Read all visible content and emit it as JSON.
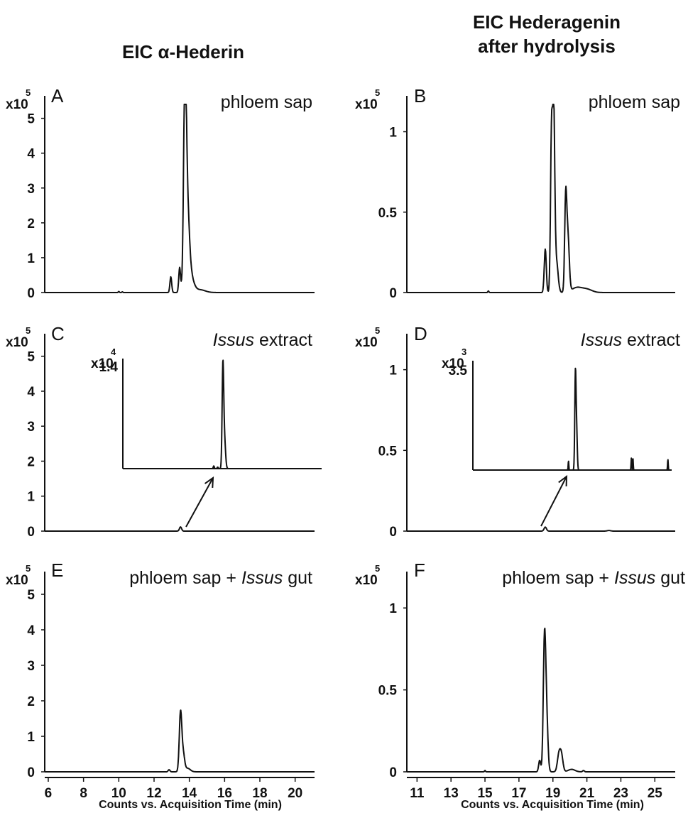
{
  "figure": {
    "column_titles": [
      {
        "lines": [
          "EIC α-Hederin"
        ]
      },
      {
        "lines": [
          "EIC Hederagenin",
          "after hydrolysis"
        ]
      }
    ],
    "x_axis_title": "Counts vs. Acquisition Time (min)"
  },
  "chart_data": [
    {
      "id": "A",
      "type": "line",
      "panel_letter": "A",
      "label_parts": [
        {
          "text": "phloem sap",
          "italic": false
        }
      ],
      "scale": {
        "base": "x10",
        "exp": "5"
      },
      "xlim": [
        5.8,
        21.1
      ],
      "ylim": [
        0,
        5.4
      ],
      "y_ticks": [
        0,
        1,
        2,
        3,
        4,
        5
      ],
      "y_tick_labels": [
        "0",
        "1",
        "2",
        "3",
        "4",
        "5"
      ],
      "x_ticks": [],
      "x_tick_labels": [],
      "peaks": [
        {
          "t": 10.0,
          "h": 0.03,
          "w": 0.03
        },
        {
          "t": 10.2,
          "h": 0.02,
          "w": 0.03
        },
        {
          "t": 12.95,
          "h": 0.45,
          "w": 0.05
        },
        {
          "t": 13.45,
          "h": 0.7,
          "w": 0.05
        },
        {
          "t": 13.75,
          "h": 5.0,
          "w": 0.07
        },
        {
          "t": 13.85,
          "h": 2.5,
          "w": 0.12
        },
        {
          "t": 14.0,
          "h": 0.6,
          "w": 0.2
        },
        {
          "t": 14.6,
          "h": 0.08,
          "w": 0.3
        }
      ]
    },
    {
      "id": "B",
      "type": "line",
      "panel_letter": "B",
      "label_parts": [
        {
          "text": "phloem sap",
          "italic": false
        }
      ],
      "scale": {
        "base": "x10",
        "exp": "5"
      },
      "xlim": [
        10.4,
        26.2
      ],
      "ylim": [
        0,
        1.17
      ],
      "y_ticks": [
        0,
        0.5,
        1
      ],
      "y_tick_labels": [
        "0",
        "0.5",
        "1"
      ],
      "x_ticks": [],
      "x_tick_labels": [],
      "peaks": [
        {
          "t": 15.2,
          "h": 0.01,
          "w": 0.03
        },
        {
          "t": 18.55,
          "h": 0.27,
          "w": 0.06
        },
        {
          "t": 18.92,
          "h": 1.0,
          "w": 0.06
        },
        {
          "t": 19.05,
          "h": 1.05,
          "w": 0.06
        },
        {
          "t": 19.2,
          "h": 0.2,
          "w": 0.1
        },
        {
          "t": 19.75,
          "h": 0.55,
          "w": 0.06
        },
        {
          "t": 19.88,
          "h": 0.35,
          "w": 0.08
        },
        {
          "t": 20.4,
          "h": 0.03,
          "w": 0.3
        },
        {
          "t": 21.0,
          "h": 0.02,
          "w": 0.3
        }
      ]
    },
    {
      "id": "C",
      "type": "line",
      "panel_letter": "C",
      "label_parts": [
        {
          "text": "Issus",
          "italic": true
        },
        {
          "text": " extract",
          "italic": false
        }
      ],
      "scale": {
        "base": "x10",
        "exp": "5"
      },
      "xlim": [
        5.8,
        21.1
      ],
      "ylim": [
        0,
        5.4
      ],
      "y_ticks": [
        0,
        1,
        2,
        3,
        4,
        5
      ],
      "y_tick_labels": [
        "0",
        "1",
        "2",
        "3",
        "4",
        "5"
      ],
      "x_ticks": [],
      "x_tick_labels": [],
      "peaks": [
        {
          "t": 13.5,
          "h": 0.12,
          "w": 0.06
        }
      ],
      "inset": {
        "scale": {
          "base": "x10",
          "exp": "4"
        },
        "y_top_label": "1.4",
        "xlim": [
          5.8,
          21.1
        ],
        "ylim": [
          0,
          1.45
        ],
        "peaks": [
          {
            "t": 12.8,
            "h": 0.035,
            "w": 0.04
          },
          {
            "t": 13.1,
            "h": 0.02,
            "w": 0.04
          },
          {
            "t": 13.5,
            "h": 1.3,
            "w": 0.06
          },
          {
            "t": 13.62,
            "h": 0.4,
            "w": 0.08
          }
        ]
      }
    },
    {
      "id": "D",
      "type": "line",
      "panel_letter": "D",
      "label_parts": [
        {
          "text": "Issus",
          "italic": true
        },
        {
          "text": " extract",
          "italic": false
        }
      ],
      "scale": {
        "base": "x10",
        "exp": "5"
      },
      "xlim": [
        10.4,
        26.2
      ],
      "ylim": [
        0,
        1.17
      ],
      "y_ticks": [
        0,
        0.5,
        1
      ],
      "y_tick_labels": [
        "0",
        "0.5",
        "1"
      ],
      "x_ticks": [],
      "x_tick_labels": [],
      "peaks": [
        {
          "t": 18.55,
          "h": 0.025,
          "w": 0.07
        },
        {
          "t": 22.3,
          "h": 0.004,
          "w": 0.1
        }
      ],
      "inset": {
        "scale": {
          "base": "x10",
          "exp": "3"
        },
        "y_top_label": "3.5",
        "xlim": [
          10.4,
          26.2
        ],
        "ylim": [
          0,
          3.6
        ],
        "peaks": [
          {
            "t": 18.0,
            "h": 0.3,
            "w": 0.025
          },
          {
            "t": 18.55,
            "h": 3.2,
            "w": 0.05
          },
          {
            "t": 18.65,
            "h": 1.2,
            "w": 0.05
          },
          {
            "t": 23.0,
            "h": 0.4,
            "w": 0.025
          },
          {
            "t": 23.12,
            "h": 0.4,
            "w": 0.025
          },
          {
            "t": 25.9,
            "h": 0.35,
            "w": 0.025
          }
        ]
      }
    },
    {
      "id": "E",
      "type": "line",
      "panel_letter": "E",
      "label_parts": [
        {
          "text": "phloem sap + ",
          "italic": false
        },
        {
          "text": "Issus",
          "italic": true
        },
        {
          "text": " gut",
          "italic": false
        }
      ],
      "scale": {
        "base": "x10",
        "exp": "5"
      },
      "xlim": [
        5.8,
        21.1
      ],
      "ylim": [
        0,
        5.4
      ],
      "y_ticks": [
        0,
        1,
        2,
        3,
        4,
        5
      ],
      "y_tick_labels": [
        "0",
        "1",
        "2",
        "3",
        "4",
        "5"
      ],
      "x_ticks": [
        6,
        8,
        10,
        12,
        14,
        16,
        18,
        20
      ],
      "x_tick_labels": [
        "6",
        "8",
        "10",
        "12",
        "14",
        "16",
        "18",
        "20"
      ],
      "peaks": [
        {
          "t": 12.85,
          "h": 0.06,
          "w": 0.05
        },
        {
          "t": 13.5,
          "h": 1.65,
          "w": 0.07
        },
        {
          "t": 13.65,
          "h": 0.5,
          "w": 0.08
        },
        {
          "t": 13.9,
          "h": 0.1,
          "w": 0.15
        }
      ]
    },
    {
      "id": "F",
      "type": "line",
      "panel_letter": "F",
      "label_parts": [
        {
          "text": "phloem sap + ",
          "italic": false
        },
        {
          "text": "Issus",
          "italic": true
        },
        {
          "text": " gut",
          "italic": false
        }
      ],
      "scale": {
        "base": "x10",
        "exp": "5"
      },
      "xlim": [
        10.4,
        26.2
      ],
      "ylim": [
        0,
        1.17
      ],
      "y_ticks": [
        0,
        0.5,
        1
      ],
      "y_tick_labels": [
        "0",
        "0.5",
        "1"
      ],
      "x_ticks": [
        11,
        13,
        15,
        17,
        19,
        21,
        23,
        25
      ],
      "x_tick_labels": [
        "11",
        "13",
        "15",
        "17",
        "19",
        "21",
        "23",
        "25"
      ],
      "peaks": [
        {
          "t": 15.0,
          "h": 0.008,
          "w": 0.03
        },
        {
          "t": 18.22,
          "h": 0.07,
          "w": 0.06
        },
        {
          "t": 18.5,
          "h": 0.75,
          "w": 0.07
        },
        {
          "t": 18.62,
          "h": 0.35,
          "w": 0.08
        },
        {
          "t": 19.35,
          "h": 0.1,
          "w": 0.09
        },
        {
          "t": 19.5,
          "h": 0.1,
          "w": 0.09
        },
        {
          "t": 20.1,
          "h": 0.015,
          "w": 0.2
        },
        {
          "t": 20.8,
          "h": 0.008,
          "w": 0.05
        }
      ]
    }
  ]
}
